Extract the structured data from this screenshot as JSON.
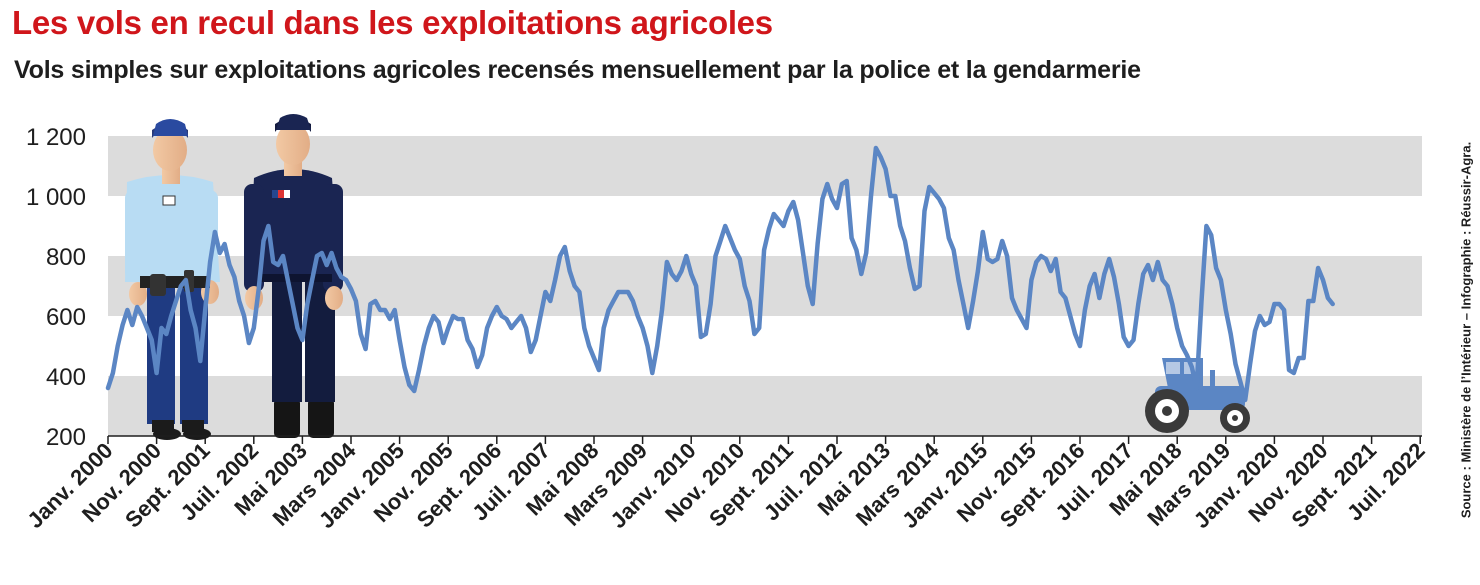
{
  "chart_data": {
    "type": "line",
    "title": "Les vols en recul dans les exploitations agricoles",
    "subtitle": "Vols simples sur exploitations agricoles recensés mensuellement par la police et la gendarmerie",
    "xlabel": "",
    "ylabel": "",
    "ylim": [
      200,
      1200
    ],
    "yticks": [
      "200",
      "400",
      "600",
      "800",
      "1 000",
      "1 200"
    ],
    "ytick_values": [
      200,
      400,
      600,
      800,
      1000,
      1200
    ],
    "grid": "alternating horizontal bands",
    "xtick_labels": [
      "Janv. 2000",
      "Nov. 2000",
      "Sept. 2001",
      "Juil. 2002",
      "Mai 2003",
      "Mars 2004",
      "Janv. 2005",
      "Nov. 2005",
      "Sept. 2006",
      "Juil. 2007",
      "Mai 2008",
      "Mars 2009",
      "Janv. 2010",
      "Nov. 2010",
      "Sept. 2011",
      "Juil. 2012",
      "Mai 2013",
      "Mars 2014",
      "Janv. 2015",
      "Nov. 2015",
      "Sept. 2016",
      "Juil. 2017",
      "Mai 2018",
      "Mars 2019",
      "Janv. 2020",
      "Nov. 2020",
      "Sept. 2021",
      "Juil. 2022"
    ],
    "x_start": "2000-01",
    "x_end": "2022-08",
    "series_color": "#5b86c4",
    "values": [
      360,
      410,
      500,
      570,
      620,
      570,
      630,
      600,
      560,
      520,
      410,
      560,
      540,
      600,
      650,
      700,
      720,
      620,
      560,
      450,
      620,
      780,
      880,
      810,
      840,
      770,
      730,
      650,
      600,
      510,
      560,
      690,
      850,
      900,
      780,
      770,
      800,
      720,
      640,
      560,
      520,
      640,
      720,
      800,
      810,
      770,
      810,
      760,
      730,
      720,
      690,
      650,
      540,
      490,
      640,
      650,
      620,
      620,
      590,
      620,
      520,
      430,
      370,
      350,
      420,
      500,
      560,
      600,
      580,
      510,
      560,
      600,
      590,
      590,
      520,
      490,
      430,
      470,
      560,
      600,
      630,
      600,
      590,
      560,
      580,
      600,
      560,
      480,
      520,
      600,
      680,
      650,
      720,
      800,
      830,
      750,
      700,
      680,
      560,
      500,
      460,
      420,
      560,
      620,
      650,
      680,
      680,
      680,
      650,
      600,
      560,
      500,
      410,
      500,
      620,
      780,
      740,
      720,
      750,
      800,
      740,
      700,
      530,
      540,
      640,
      800,
      850,
      900,
      860,
      820,
      790,
      700,
      650,
      540,
      560,
      820,
      890,
      940,
      920,
      900,
      950,
      980,
      920,
      810,
      700,
      640,
      840,
      990,
      1040,
      990,
      960,
      1040,
      1050,
      860,
      820,
      740,
      810,
      1000,
      1160,
      1130,
      1090,
      1000,
      1000,
      900,
      850,
      760,
      690,
      700,
      950,
      1030,
      1010,
      990,
      960,
      860,
      820,
      720,
      640,
      560,
      650,
      750,
      880,
      790,
      780,
      790,
      850,
      800,
      660,
      620,
      590,
      560,
      720,
      780,
      800,
      790,
      750,
      790,
      680,
      660,
      600,
      540,
      500,
      620,
      700,
      740,
      660,
      740,
      790,
      730,
      640,
      530,
      500,
      520,
      640,
      740,
      770,
      720,
      780,
      720,
      700,
      640,
      560,
      500,
      470,
      430,
      360,
      650,
      900,
      870,
      760,
      720,
      620,
      540,
      440,
      380,
      320,
      440,
      550,
      600,
      570,
      580,
      640,
      640,
      620,
      420,
      410,
      460,
      460,
      650,
      650,
      760,
      720,
      660,
      640
    ]
  },
  "source_credit": "Source : Ministère de l’Intérieur – Infographie : Réussir-Agra."
}
